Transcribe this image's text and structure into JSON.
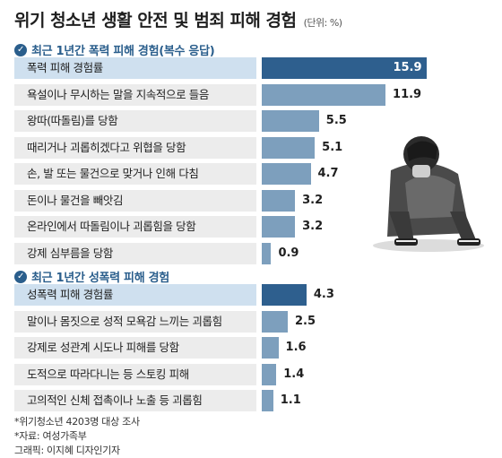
{
  "title": "위기 청소년 생활 안전 및 범죄 피해 경험",
  "unit": "(단위: %)",
  "colors": {
    "highlight": "#2e5f8e",
    "bar": "#7d9fbd",
    "header": "#2a5e8c"
  },
  "chart_data": [
    {
      "type": "bar",
      "title": "최근 1년간 폭력 피해 경험(복수 응답)",
      "categories": [
        "폭력 피해 경험률",
        "욕설이나 무시하는 말을 지속적으로 들음",
        "왕따(따돌림)를 당함",
        "때리거나 괴롭히겠다고 위협을 당함",
        "손, 발 또는 물건으로 맞거나 인해 다침",
        "돈이나 물건을 빼앗김",
        "온라인에서 따돌림이나 괴롭힘을 당함",
        "강제 심부름을 당함"
      ],
      "values": [
        15.9,
        11.9,
        5.5,
        5.1,
        4.7,
        3.2,
        3.2,
        0.9
      ],
      "value_labels": [
        "15.9",
        "11.9",
        "5.5",
        "5.1",
        "4.7",
        "3.2",
        "3.2",
        "0.9"
      ],
      "highlight_index": 0
    },
    {
      "type": "bar",
      "title": "최근 1년간 성폭력 피해 경험",
      "categories": [
        "성폭력 피해 경험률",
        "말이나 몸짓으로 성적 모욕감 느끼는 괴롭힘",
        "강제로 성관계 시도나 피해를 당함",
        "도적으로 따라다니는 등 스토킹 피해",
        "고의적인 신체 접촉이나 노출 등 괴롭힘"
      ],
      "values": [
        4.3,
        2.5,
        1.6,
        1.4,
        1.1
      ],
      "value_labels": [
        "4.3",
        "2.5",
        "1.6",
        "1.4",
        "1.1"
      ],
      "highlight_index": 0
    }
  ],
  "footnotes": [
    "*위기청소년 4203명 대상 조사",
    "*자료: 여성가족부",
    "그래픽: 이지혜 디자인기자"
  ]
}
